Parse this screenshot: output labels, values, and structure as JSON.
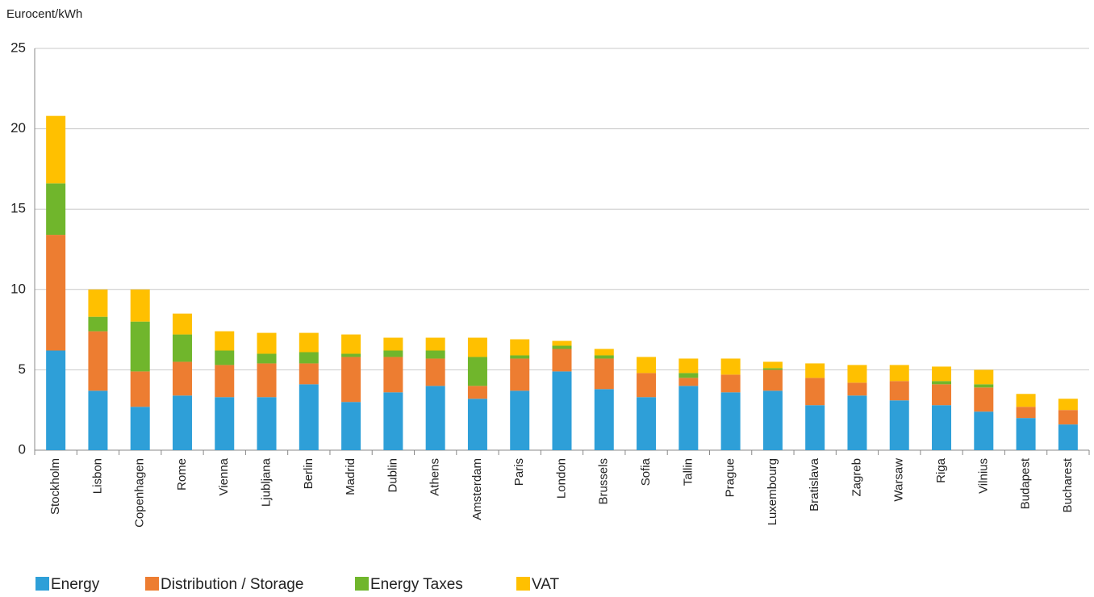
{
  "chart_data": {
    "type": "stacked_bar",
    "y_label": "Eurocent/kWh",
    "categories": [
      "Stockholm",
      "Lisbon",
      "Copenhagen",
      "Rome",
      "Vienna",
      "Ljubljana",
      "Berlin",
      "Madrid",
      "Dublin",
      "Athens",
      "Amsterdam",
      "Paris",
      "London",
      "Brussels",
      "Sofia",
      "Tallin",
      "Prague",
      "Luxembourg",
      "Bratislava",
      "Zagreb",
      "Warsaw",
      "Riga",
      "Vilnius",
      "Budapest",
      "Bucharest"
    ],
    "series": [
      {
        "name": "Energy",
        "color": "#2e9fd8",
        "values": [
          6.2,
          3.7,
          2.7,
          3.4,
          3.3,
          3.3,
          4.1,
          3.0,
          3.6,
          4.0,
          3.2,
          3.7,
          4.9,
          3.8,
          3.3,
          4.0,
          3.6,
          3.7,
          2.8,
          3.4,
          3.1,
          2.8,
          2.4,
          2.0,
          1.6
        ]
      },
      {
        "name": "Distribution / Storage",
        "color": "#ed7d31",
        "values": [
          7.2,
          3.7,
          2.2,
          2.1,
          2.0,
          2.1,
          1.3,
          2.8,
          2.2,
          1.7,
          0.8,
          2.0,
          1.4,
          1.9,
          1.5,
          0.5,
          1.1,
          1.3,
          1.7,
          0.8,
          1.2,
          1.3,
          1.5,
          0.7,
          0.9
        ]
      },
      {
        "name": "Energy Taxes",
        "color": "#70b62c",
        "values": [
          3.2,
          0.9,
          3.1,
          1.7,
          0.9,
          0.6,
          0.7,
          0.2,
          0.4,
          0.5,
          1.8,
          0.2,
          0.2,
          0.2,
          0,
          0.3,
          0,
          0.1,
          0,
          0,
          0,
          0.2,
          0.2,
          0,
          0
        ]
      },
      {
        "name": "VAT",
        "color": "#ffc000",
        "values": [
          4.2,
          1.7,
          2.0,
          1.3,
          1.2,
          1.3,
          1.2,
          1.2,
          0.8,
          0.8,
          1.2,
          1.0,
          0.3,
          0.4,
          1.0,
          0.9,
          1.0,
          0.4,
          0.9,
          1.1,
          1.0,
          0.9,
          0.9,
          0.8,
          0.7
        ]
      }
    ],
    "ylim": [
      0,
      25
    ],
    "yticks": [
      0,
      5,
      10,
      15,
      20,
      25
    ],
    "grid": true
  }
}
